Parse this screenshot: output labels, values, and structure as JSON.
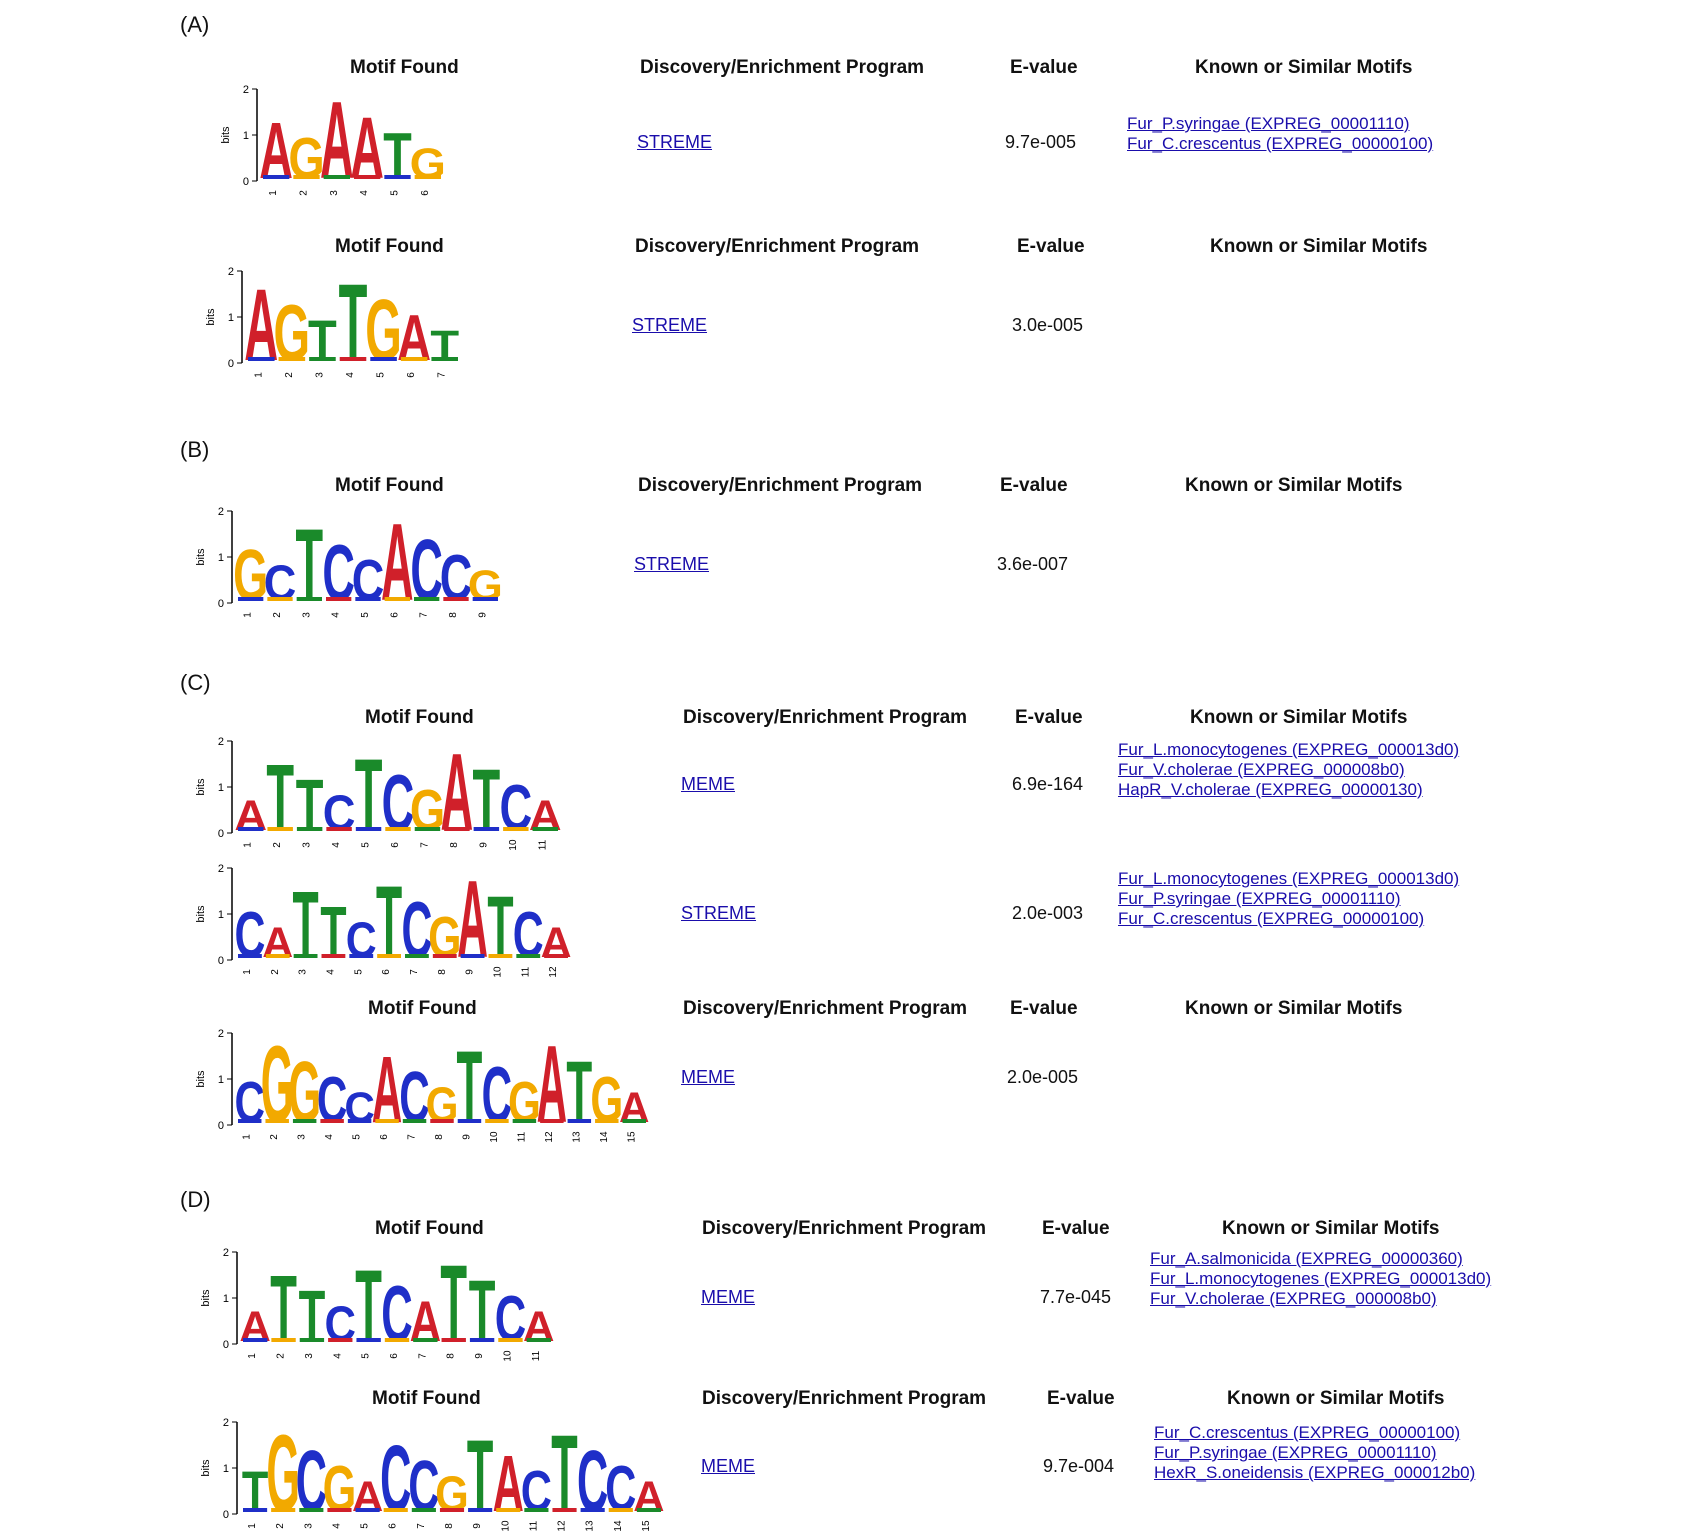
{
  "panels": [
    {
      "label": "(A)",
      "blocks": [
        {
          "show_header": true,
          "headers": {
            "motif": "Motif Found",
            "program": "Discovery/Enrichment Program",
            "evalue": "E-value",
            "known": "Known or Similar Motifs"
          },
          "program": "STREME",
          "evalue": "9.7e-005",
          "known": [
            "Fur_P.syringae (EXPREG_00001110)",
            "Fur_C.crescentus (EXPREG_00000100)"
          ],
          "logo": {
            "axis_label": "bits",
            "y_ticks": [
              "0",
              "1",
              "2"
            ],
            "positions": [
              "1",
              "2",
              "3",
              "4",
              "5",
              "6"
            ],
            "letters": [
              "A",
              "G",
              "A",
              "A",
              "T",
              "G"
            ]
          }
        },
        {
          "show_header": true,
          "headers": {
            "motif": "Motif Found",
            "program": "Discovery/Enrichment Program",
            "evalue": "E-value",
            "known": "Known or Similar Motifs"
          },
          "program": "STREME",
          "evalue": "3.0e-005",
          "known": [],
          "logo": {
            "axis_label": "bits",
            "y_ticks": [
              "0",
              "1",
              "2"
            ],
            "positions": [
              "1",
              "2",
              "3",
              "4",
              "5",
              "6",
              "7"
            ],
            "letters": [
              "A",
              "G",
              "T",
              "T",
              "G",
              "A",
              "T"
            ]
          }
        }
      ]
    },
    {
      "label": "(B)",
      "blocks": [
        {
          "show_header": true,
          "headers": {
            "motif": "Motif Found",
            "program": "Discovery/Enrichment Program",
            "evalue": "E-value",
            "known": "Known or Similar Motifs"
          },
          "program": "STREME",
          "evalue": "3.6e-007",
          "known": [],
          "logo": {
            "axis_label": "bits",
            "y_ticks": [
              "0",
              "1",
              "2"
            ],
            "positions": [
              "1",
              "2",
              "3",
              "4",
              "5",
              "6",
              "7",
              "8",
              "9"
            ],
            "letters": [
              "G",
              "C",
              "T",
              "C",
              "C",
              "A",
              "C",
              "C",
              "G"
            ]
          }
        }
      ]
    },
    {
      "label": "(C)",
      "blocks": [
        {
          "show_header": true,
          "headers": {
            "motif": "Motif Found",
            "program": "Discovery/Enrichment Program",
            "evalue": "E-value",
            "known": "Known or Similar Motifs"
          },
          "program": "MEME",
          "evalue": "6.9e-164",
          "known": [
            "Fur_L.monocytogenes (EXPREG_000013d0)",
            "Fur_V.cholerae (EXPREG_000008b0)",
            "HapR_V.cholerae (EXPREG_00000130)"
          ],
          "logo": {
            "axis_label": "bits",
            "y_ticks": [
              "0",
              "1",
              "2"
            ],
            "positions": [
              "1",
              "2",
              "3",
              "4",
              "5",
              "6",
              "7",
              "8",
              "9",
              "10",
              "11"
            ],
            "letters": [
              "A",
              "T",
              "T",
              "C",
              "T",
              "C",
              "G",
              "A",
              "T",
              "C",
              "A"
            ]
          }
        },
        {
          "show_header": false,
          "program": "STREME",
          "evalue": "2.0e-003",
          "known": [
            "Fur_L.monocytogenes (EXPREG_000013d0)",
            "Fur_P.syringae (EXPREG_00001110)",
            "Fur_C.crescentus (EXPREG_00000100)"
          ],
          "logo": {
            "axis_label": "bits",
            "y_ticks": [
              "0",
              "1",
              "2"
            ],
            "positions": [
              "1",
              "2",
              "3",
              "4",
              "5",
              "6",
              "7",
              "8",
              "9",
              "10",
              "11",
              "12"
            ],
            "letters": [
              "C",
              "A",
              "T",
              "T",
              "C",
              "T",
              "C",
              "G",
              "A",
              "T",
              "C",
              "A"
            ]
          }
        },
        {
          "show_header": true,
          "headers": {
            "motif": "Motif Found",
            "program": "Discovery/Enrichment Program",
            "evalue": "E-value",
            "known": "Known or Similar Motifs"
          },
          "program": "MEME",
          "evalue": "2.0e-005",
          "known": [],
          "logo": {
            "axis_label": "bits",
            "y_ticks": [
              "0",
              "1",
              "2"
            ],
            "positions": [
              "1",
              "2",
              "3",
              "4",
              "5",
              "6",
              "7",
              "8",
              "9",
              "10",
              "11",
              "12",
              "13",
              "14",
              "15"
            ],
            "letters": [
              "C",
              "G",
              "G",
              "C",
              "C",
              "A",
              "C",
              "G",
              "T",
              "C",
              "G",
              "A",
              "T",
              "G",
              "A"
            ]
          }
        }
      ]
    },
    {
      "label": "(D)",
      "blocks": [
        {
          "show_header": true,
          "headers": {
            "motif": "Motif Found",
            "program": "Discovery/Enrichment Program",
            "evalue": "E-value",
            "known": "Known or Similar Motifs"
          },
          "program": "MEME",
          "evalue": "7.7e-045",
          "known": [
            "Fur_A.salmonicida (EXPREG_00000360)",
            "Fur_L.monocytogenes (EXPREG_000013d0)",
            "Fur_V.cholerae (EXPREG_000008b0)"
          ],
          "logo": {
            "axis_label": "bits",
            "y_ticks": [
              "0",
              "1",
              "2"
            ],
            "positions": [
              "1",
              "2",
              "3",
              "4",
              "5",
              "6",
              "7",
              "8",
              "9",
              "10",
              "11"
            ],
            "letters": [
              "A",
              "T",
              "T",
              "C",
              "T",
              "C",
              "A",
              "T",
              "T",
              "C",
              "A"
            ]
          }
        },
        {
          "show_header": true,
          "headers": {
            "motif": "Motif Found",
            "program": "Discovery/Enrichment Program",
            "evalue": "E-value",
            "known": "Known or Similar Motifs"
          },
          "program": "MEME",
          "evalue": "9.7e-004",
          "known": [
            "Fur_C.crescentus (EXPREG_00000100)",
            "Fur_P.syringae (EXPREG_00001110)",
            "HexR_S.oneidensis (EXPREG_000012b0)"
          ],
          "logo": {
            "axis_label": "bits",
            "y_ticks": [
              "0",
              "1",
              "2"
            ],
            "positions": [
              "1",
              "2",
              "3",
              "4",
              "5",
              "6",
              "7",
              "8",
              "9",
              "10",
              "11",
              "12",
              "13",
              "14",
              "15"
            ],
            "letters": [
              "T",
              "G",
              "C",
              "G",
              "A",
              "C",
              "C",
              "G",
              "T",
              "A",
              "C",
              "T",
              "C",
              "C",
              "A"
            ]
          }
        }
      ]
    }
  ],
  "letter_colors": {
    "A": "#d0202a",
    "C": "#1f2fc8",
    "G": "#f2a900",
    "T": "#1a8a2a"
  }
}
